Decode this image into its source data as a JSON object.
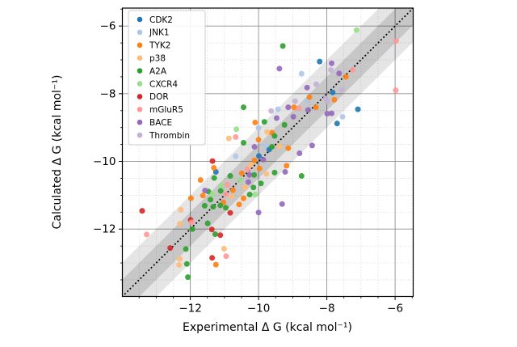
{
  "chart_data": {
    "type": "scatter",
    "xlabel": "Experimental Δ G (kcal mol⁻¹)",
    "ylabel": "Calculated Δ G (kcal mol⁻¹)",
    "xlim": [
      -13.99,
      -5.47
    ],
    "ylim": [
      -13.99,
      -5.47
    ],
    "xticks": [
      -12,
      -10,
      -8,
      -6
    ],
    "yticks": [
      -12,
      -10,
      -8,
      -6
    ],
    "xtick_labels": [
      "−12",
      "−10",
      "−8",
      "−6"
    ],
    "ytick_labels": [
      "−12",
      "−10",
      "−8",
      "−6"
    ],
    "minor_tick_step": 0.5,
    "grid": {
      "major": true,
      "minor": true
    },
    "legend_position": "upper left",
    "identity_line": {
      "equation": "y = x",
      "style": "dotted",
      "color": "#000000"
    },
    "error_bands": [
      {
        "half_width_kcal": 1.0,
        "color": "#000000",
        "opacity": 0.1
      },
      {
        "half_width_kcal": 0.5,
        "color": "#000000",
        "opacity": 0.13
      }
    ],
    "series": [
      {
        "name": "CDK2",
        "color": "#1f77b4",
        "points": [
          [
            -8.21,
            -7.05
          ],
          [
            -7.83,
            -7.96
          ],
          [
            -7.09,
            -8.46
          ],
          [
            -7.7,
            -8.88
          ],
          [
            -9.69,
            -9.65
          ],
          [
            -9.99,
            -9.84
          ],
          [
            -11.25,
            -10.31
          ]
        ]
      },
      {
        "name": "JNK1",
        "color": "#aec7e8",
        "points": [
          [
            -8.74,
            -7.41
          ],
          [
            -7.54,
            -8.68
          ],
          [
            -9.43,
            -8.46
          ],
          [
            -8.57,
            -8.19
          ],
          [
            -10.0,
            -9.01
          ],
          [
            -9.79,
            -9.53
          ],
          [
            -10.67,
            -9.85
          ]
        ]
      },
      {
        "name": "TYK2",
        "color": "#ff7f0e",
        "points": [
          [
            -7.44,
            -7.5
          ],
          [
            -7.78,
            -8.18
          ],
          [
            -8.51,
            -8.1
          ],
          [
            -8.32,
            -8.4
          ],
          [
            -8.96,
            -8.4
          ],
          [
            -10.1,
            -8.85
          ],
          [
            -9.61,
            -9.15
          ],
          [
            -9.13,
            -9.61
          ],
          [
            -10.0,
            -9.36
          ],
          [
            -10.12,
            -9.97
          ],
          [
            -9.97,
            -10.21
          ],
          [
            -9.18,
            -10.13
          ],
          [
            -10.49,
            -10.35
          ],
          [
            -10.75,
            -10.85
          ],
          [
            -10.44,
            -11.09
          ],
          [
            -11.31,
            -10.19
          ],
          [
            -11.7,
            -10.55
          ],
          [
            -11.63,
            -11.01
          ],
          [
            -11.98,
            -11.09
          ],
          [
            -11.03,
            -11.21
          ],
          [
            -10.57,
            -11.27
          ],
          [
            -11.25,
            -13.05
          ]
        ]
      },
      {
        "name": "p38",
        "color": "#ffbb78",
        "points": [
          [
            -9.75,
            -9.13
          ],
          [
            -10.87,
            -9.32
          ],
          [
            -9.39,
            -9.55
          ],
          [
            -10.23,
            -10.11
          ],
          [
            -9.77,
            -10.37
          ],
          [
            -10.4,
            -10.77
          ],
          [
            -10.79,
            -11.03
          ],
          [
            -12.28,
            -11.43
          ],
          [
            -12.31,
            -11.84
          ],
          [
            -11.01,
            -12.58
          ],
          [
            -12.31,
            -12.88
          ],
          [
            -12.33,
            -13.06
          ]
        ]
      },
      {
        "name": "A2A",
        "color": "#2ca02c",
        "points": [
          [
            -9.29,
            -6.59
          ],
          [
            -10.44,
            -8.4
          ],
          [
            -9.24,
            -8.92
          ],
          [
            -9.83,
            -8.83
          ],
          [
            -9.53,
            -9.25
          ],
          [
            -10.44,
            -9.45
          ],
          [
            -9.61,
            -9.57
          ],
          [
            -10.83,
            -10.43
          ],
          [
            -10.13,
            -10.4
          ],
          [
            -9.53,
            -10.33
          ],
          [
            -8.74,
            -10.43
          ],
          [
            -11.3,
            -10.49
          ],
          [
            -11.47,
            -10.89
          ],
          [
            -11.11,
            -10.87
          ],
          [
            -10.15,
            -10.77
          ],
          [
            -9.93,
            -10.65
          ],
          [
            -10.26,
            -10.98
          ],
          [
            -11.41,
            -11.13
          ],
          [
            -11.12,
            -11.3
          ],
          [
            -10.96,
            -11.37
          ],
          [
            -11.58,
            -11.31
          ],
          [
            -11.33,
            -11.34
          ],
          [
            -11.49,
            -11.83
          ],
          [
            -11.94,
            -12.0
          ],
          [
            -11.27,
            -12.15
          ],
          [
            -12.13,
            -12.59
          ],
          [
            -12.1,
            -13.03
          ],
          [
            -12.07,
            -13.42
          ]
        ]
      },
      {
        "name": "CXCR4",
        "color": "#98df8a",
        "points": [
          [
            -7.13,
            -6.12
          ],
          [
            -10.65,
            -9.05
          ],
          [
            -10.54,
            -10.55
          ],
          [
            -11.09,
            -10.71
          ],
          [
            -11.35,
            -10.97
          ],
          [
            -10.1,
            -10.98
          ]
        ]
      },
      {
        "name": "DOR",
        "color": "#d62728",
        "points": [
          [
            -13.41,
            -11.46
          ],
          [
            -11.35,
            -9.99
          ],
          [
            -11.99,
            -11.73
          ],
          [
            -10.83,
            -11.52
          ],
          [
            -11.37,
            -12.01
          ],
          [
            -11.12,
            -12.18
          ],
          [
            -12.59,
            -12.56
          ],
          [
            -11.36,
            -12.85
          ]
        ]
      },
      {
        "name": "mGluR5",
        "color": "#ff9896",
        "points": [
          [
            -5.97,
            -6.44
          ],
          [
            -7.24,
            -7.3
          ],
          [
            -5.98,
            -7.9
          ],
          [
            -8.82,
            -8.43
          ],
          [
            -10.67,
            -9.28
          ],
          [
            -10.33,
            -10.23
          ],
          [
            -10.91,
            -10.69
          ],
          [
            -10.96,
            -10.97
          ],
          [
            -11.96,
            -11.8
          ],
          [
            -13.28,
            -12.16
          ],
          [
            -10.95,
            -12.8
          ]
        ]
      },
      {
        "name": "BACE",
        "color": "#9467bd",
        "points": [
          [
            -9.39,
            -7.26
          ],
          [
            -8.58,
            -7.82
          ],
          [
            -7.86,
            -7.1
          ],
          [
            -7.64,
            -7.4
          ],
          [
            -7.99,
            -8.59
          ],
          [
            -7.86,
            -8.58
          ],
          [
            -9.47,
            -8.72
          ],
          [
            -8.98,
            -8.68
          ],
          [
            -8.55,
            -8.48
          ],
          [
            -9.13,
            -8.4
          ],
          [
            -10.12,
            -9.57
          ],
          [
            -9.86,
            -9.95
          ],
          [
            -8.8,
            -9.76
          ],
          [
            -8.43,
            -9.53
          ],
          [
            -10.27,
            -10.4
          ],
          [
            -10.3,
            -10.61
          ],
          [
            -9.22,
            -10.31
          ],
          [
            -11.57,
            -10.86
          ],
          [
            -10.0,
            -11.51
          ],
          [
            -9.31,
            -11.26
          ]
        ]
      },
      {
        "name": "Thrombin",
        "color": "#c5b0d5",
        "points": [
          [
            -7.88,
            -7.3
          ],
          [
            -7.56,
            -7.88
          ],
          [
            -8.31,
            -7.72
          ],
          [
            -9.63,
            -8.51
          ],
          [
            -8.93,
            -8.22
          ],
          [
            -8.03,
            -8.14
          ],
          [
            -7.99,
            -8.23
          ]
        ]
      }
    ]
  }
}
